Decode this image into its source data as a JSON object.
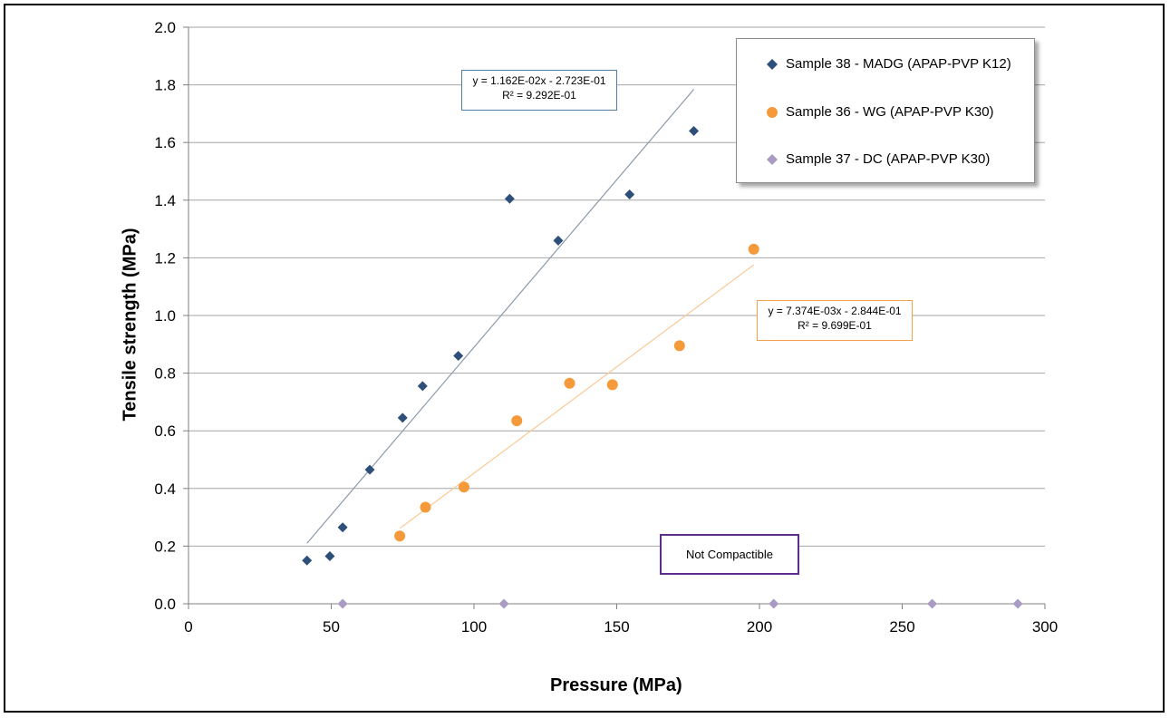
{
  "chart_data": {
    "type": "scatter",
    "xlabel": "Pressure (MPa)",
    "ylabel": "Tensile strength (MPa)",
    "xlim": [
      0,
      300
    ],
    "ylim": [
      0,
      2.0
    ],
    "x_ticks": [
      "0",
      "50",
      "100",
      "150",
      "200",
      "250",
      "300"
    ],
    "y_ticks": [
      "0.0",
      "0.2",
      "0.4",
      "0.6",
      "0.8",
      "1.0",
      "1.2",
      "1.4",
      "1.6",
      "1.8",
      "2.0"
    ],
    "grid": "horizontal",
    "legend_position": "top-right",
    "series": [
      {
        "name": "Sample 38  - MADG (APAP-PVP K12)",
        "marker": "diamond",
        "color": "#2e4f7a",
        "points": [
          [
            41.5,
            0.15
          ],
          [
            49.5,
            0.165
          ],
          [
            54,
            0.265
          ],
          [
            63.5,
            0.465
          ],
          [
            75,
            0.645
          ],
          [
            82,
            0.755
          ],
          [
            94.5,
            0.86
          ],
          [
            112.5,
            1.405
          ],
          [
            129.5,
            1.26
          ],
          [
            154.5,
            1.42
          ],
          [
            177,
            1.64
          ]
        ],
        "trendline": {
          "x_range": [
            41.5,
            177
          ],
          "slope": 0.01162,
          "intercept": -0.2723,
          "color": "#8a9aaa"
        }
      },
      {
        "name": "Sample 36  - WG (APAP-PVP K30)",
        "marker": "circle",
        "color": "#f59a3a",
        "points": [
          [
            74,
            0.235
          ],
          [
            83,
            0.335
          ],
          [
            96.5,
            0.405
          ],
          [
            115,
            0.635
          ],
          [
            133.5,
            0.765
          ],
          [
            148.5,
            0.76
          ],
          [
            172,
            0.895
          ],
          [
            198,
            1.23
          ]
        ],
        "trendline": {
          "x_range": [
            74,
            198
          ],
          "slope": 0.007374,
          "intercept": -0.2844,
          "color": "#fbc99a"
        }
      },
      {
        "name": "Sample 37  - DC (APAP-PVP K30)",
        "marker": "diamond",
        "color": "#a99bc4",
        "points": [
          [
            54,
            0.0
          ],
          [
            110.5,
            0.0
          ],
          [
            205,
            0.0
          ],
          [
            260.5,
            0.0
          ],
          [
            290.5,
            0.0
          ]
        ]
      }
    ],
    "annotations": {
      "eq1": {
        "line1": "y = 1.162E-02x - 2.723E-01",
        "line2": "R² = 9.292E-01",
        "border_color": "#4f7ca8"
      },
      "eq2": {
        "line1": "y = 7.374E-03x - 2.844E-01",
        "line2": "R² = 9.699E-01",
        "border_color": "#f5a04a"
      },
      "note": "Not Compactible"
    }
  }
}
